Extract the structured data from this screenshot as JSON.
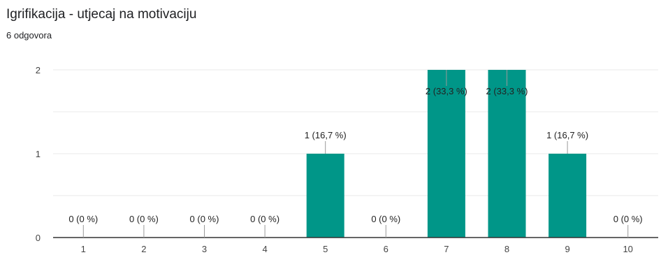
{
  "header": {
    "title": "Igrifikacija - utjecaj na motivaciju",
    "responses": "6 odgovora"
  },
  "colors": {
    "bar": "#009688",
    "grid": "#e8e8e8",
    "axis": "#333333",
    "leader": "#999999"
  },
  "chart_data": {
    "type": "bar",
    "title": "Igrifikacija - utjecaj na motivaciju",
    "categories": [
      "1",
      "2",
      "3",
      "4",
      "5",
      "6",
      "7",
      "8",
      "9",
      "10"
    ],
    "values": [
      0,
      0,
      0,
      0,
      1,
      0,
      2,
      2,
      1,
      0
    ],
    "data_labels": [
      "0 (0 %)",
      "0 (0 %)",
      "0 (0 %)",
      "0 (0 %)",
      "1 (16,7 %)",
      "0 (0 %)",
      "2 (33,3 %)",
      "2 (33,3 %)",
      "1 (16,7 %)",
      "0 (0 %)"
    ],
    "yticks": [
      "0",
      "1",
      "2"
    ],
    "ylim": [
      0,
      2
    ],
    "grid": true,
    "legend": "none"
  }
}
